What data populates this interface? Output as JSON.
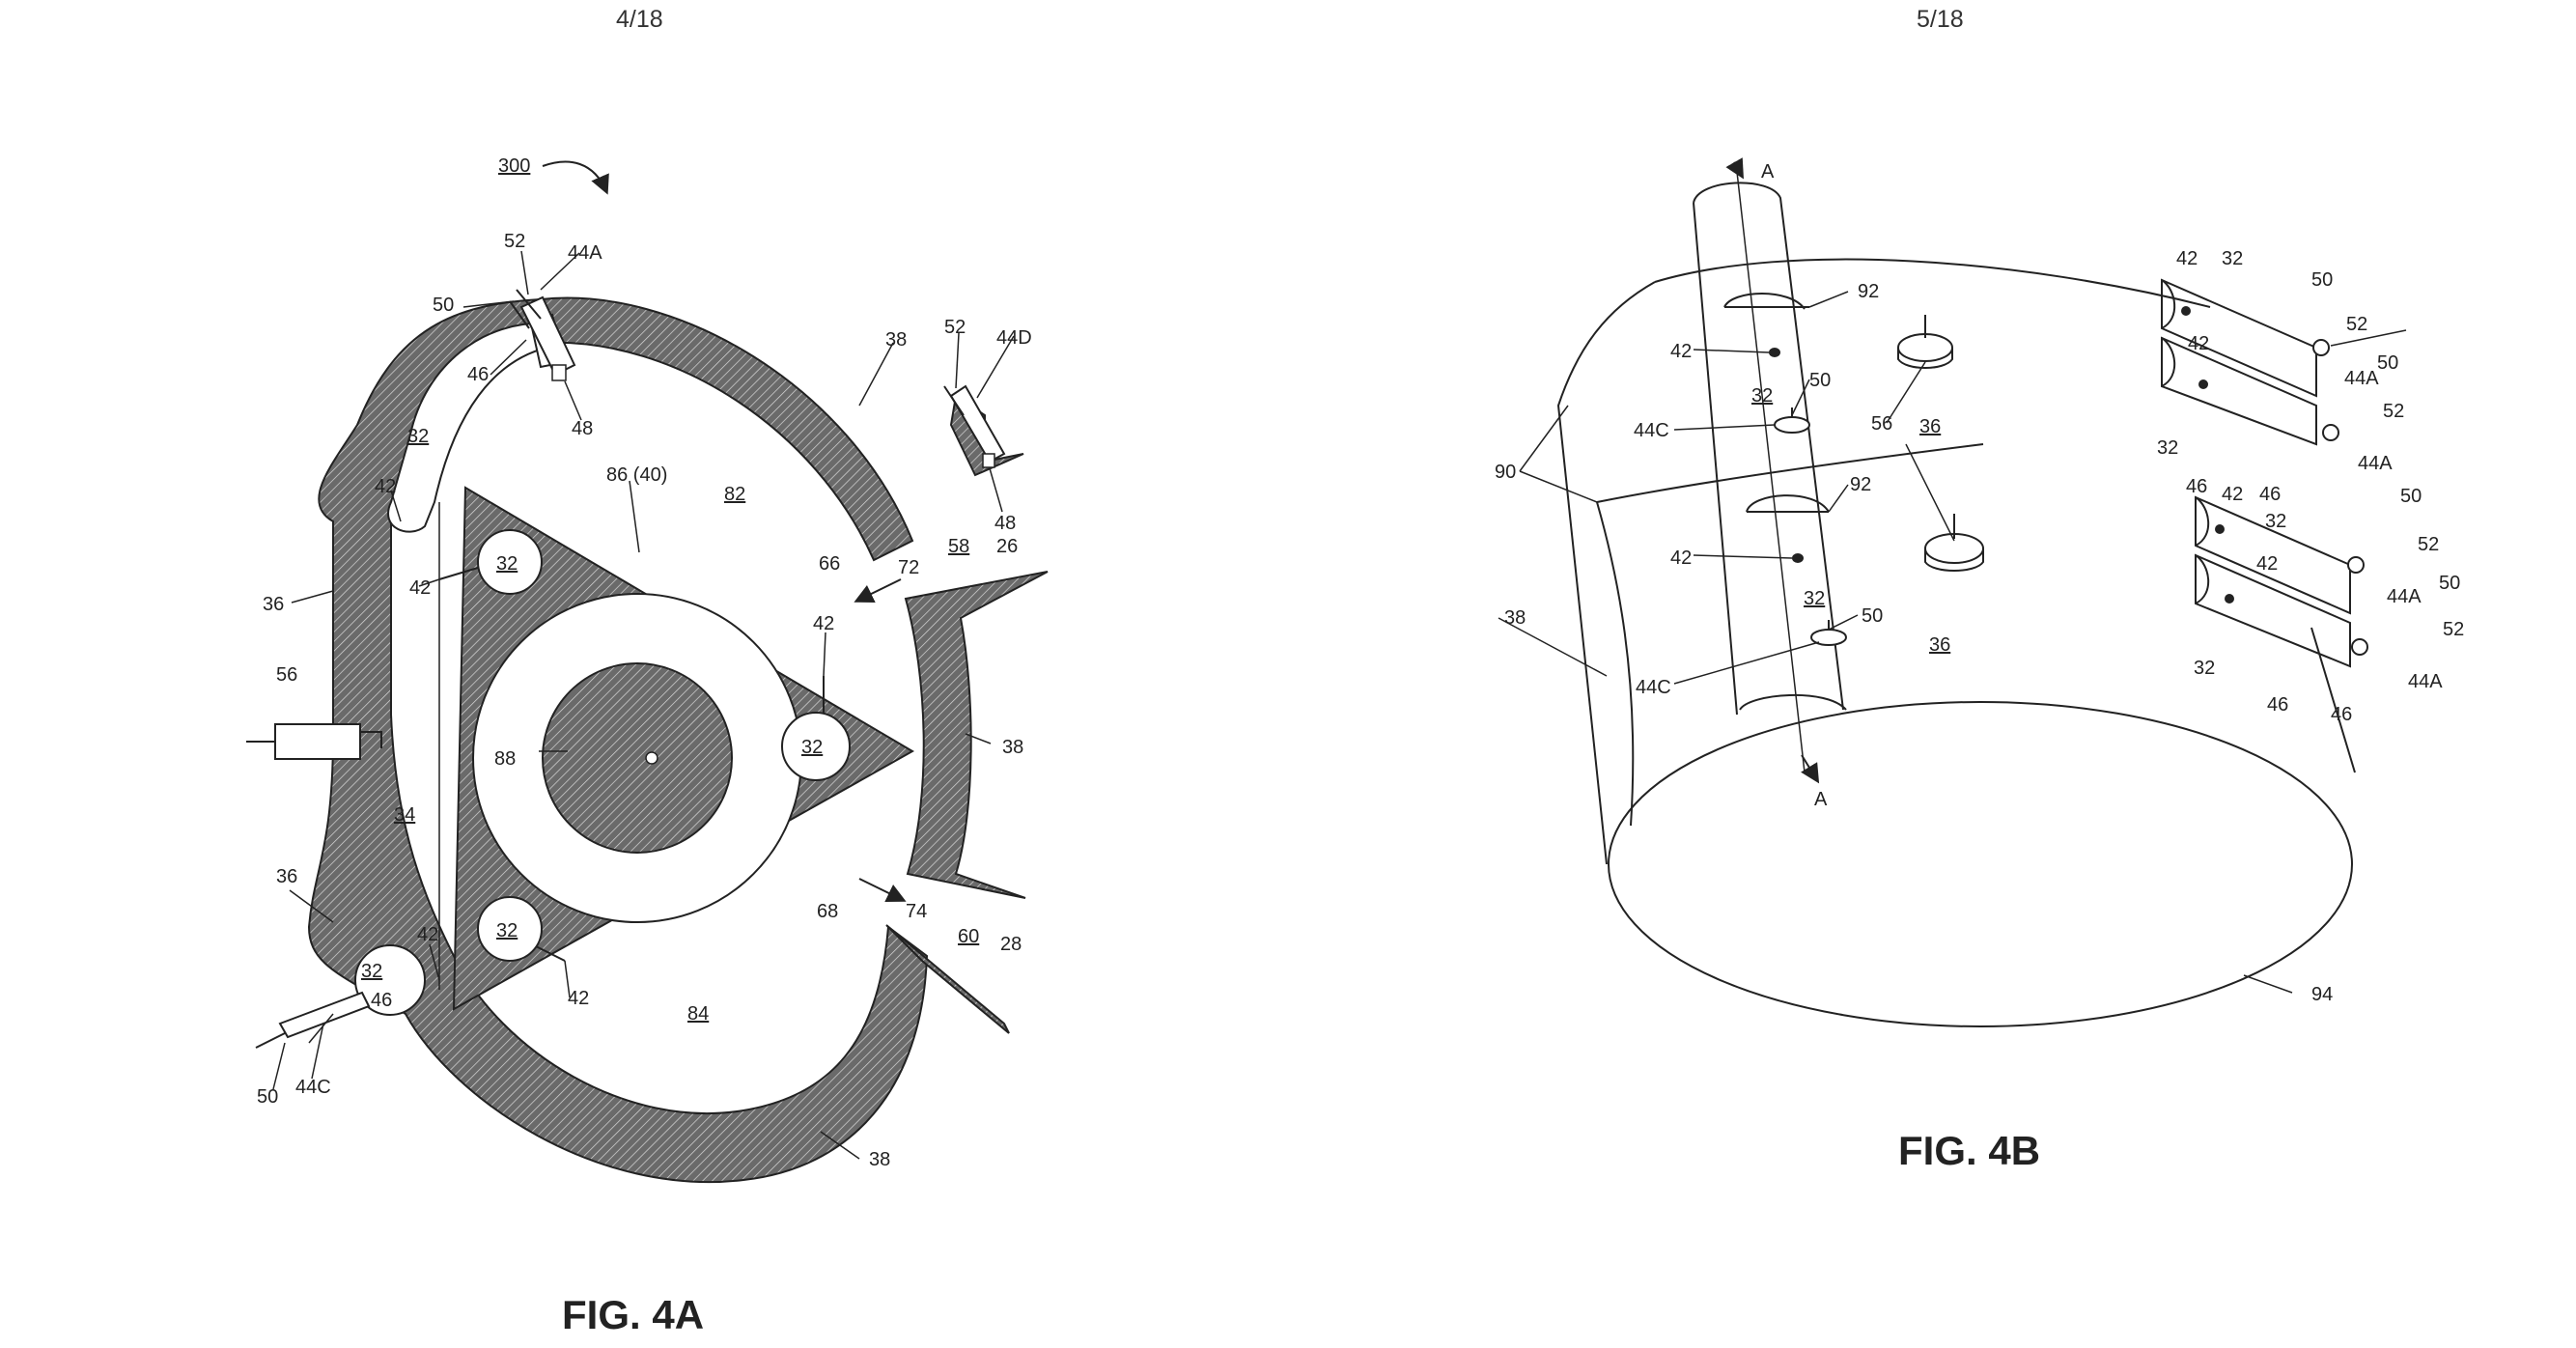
{
  "page_numbers": {
    "left": "4/18",
    "right": "5/18"
  },
  "fig4a": {
    "caption": "FIG. 4A",
    "labels": {
      "ref300": "300",
      "n52_top": "52",
      "n44a": "44A",
      "n50_top": "50",
      "n46_top": "46",
      "n48_top": "48",
      "n38_top": "38",
      "n52_right": "52",
      "n44d": "44D",
      "n48_right": "48",
      "n26": "26",
      "n58": "58",
      "n32_upper": "32",
      "n42_upleft": "42",
      "n86": "86 (40)",
      "n82": "82",
      "n42_left": "42",
      "n32_rotor_top": "32",
      "n36_upper": "36",
      "n66": "66",
      "n72": "72",
      "n42_tip": "42",
      "n56": "56",
      "n88": "88",
      "n32_rotor_right": "32",
      "n38_right": "38",
      "n34": "34",
      "n36_lower": "36",
      "n42_lowleft": "42",
      "n32_rotor_bottom": "32",
      "n68": "68",
      "n74": "74",
      "n60": "60",
      "n28": "28",
      "n32_lower": "32",
      "n46_lower": "46",
      "n42_bottom": "42",
      "n84": "84",
      "n50_lower": "50",
      "n44c": "44C",
      "n38_bottom": "38"
    }
  },
  "fig4b": {
    "caption": "FIG. 4B",
    "labels": {
      "a_top": "A",
      "a_bottom": "A",
      "n92_top": "92",
      "n42_tube_top": "42",
      "n32_tube_top": "32",
      "n50_tube_top": "50",
      "n44c_top": "44C",
      "n56": "56",
      "n36_top": "36",
      "n90": "90",
      "n92_mid": "92",
      "n42_tube_low": "42",
      "n32_tube_low": "32",
      "n50_tube_low": "50",
      "n36_low": "36",
      "n44c_low": "44C",
      "n38": "38",
      "n94": "94",
      "n42_r1": "42",
      "n32_r1": "32",
      "n50_r1": "50",
      "n52_r1": "52",
      "n42_r2": "42",
      "n44a_r1": "44A",
      "n50_r2": "50",
      "n52_r2": "52",
      "n32_r2": "32",
      "n44a_r2": "44A",
      "n46_r1": "46",
      "n42_r3": "42",
      "n46_r2": "46",
      "n32_r3": "32",
      "n50_r3": "50",
      "n52_r3": "52",
      "n42_r4": "42",
      "n44a_r3": "44A",
      "n50_r4": "50",
      "n52_r4": "52",
      "n32_r4": "32",
      "n44a_r4": "44A",
      "n46_r3": "46",
      "n46_r4": "46"
    }
  }
}
